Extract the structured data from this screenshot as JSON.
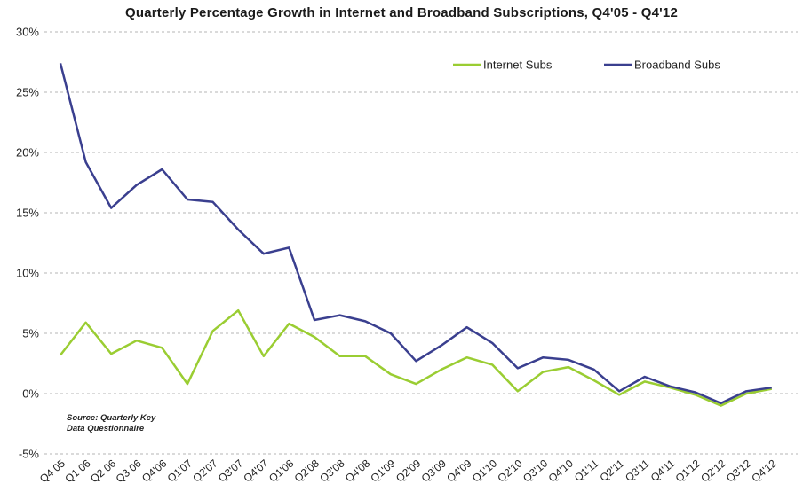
{
  "chart_data": {
    "type": "line",
    "title": "Quarterly Percentage Growth in Internet and Broadband Subscriptions, Q4'05 - Q4'12",
    "xlabel": "",
    "ylabel": "",
    "categories": [
      "Q4 05",
      "Q1 06",
      "Q2 06",
      "Q3 06",
      "Q4'06",
      "Q1'07",
      "Q2'07",
      "Q3'07",
      "Q4'07",
      "Q1'08",
      "Q2'08",
      "Q3'08",
      "Q4'08",
      "Q1'09",
      "Q2'09",
      "Q3'09",
      "Q4'09",
      "Q1'10",
      "Q2'10",
      "Q3'10",
      "Q4'10",
      "Q1'11",
      "Q2'11",
      "Q3'11",
      "Q4'11",
      "Q1'12",
      "Q2'12",
      "Q3'12",
      "Q4'12"
    ],
    "y_ticks": [
      "-5%",
      "0%",
      "5%",
      "10%",
      "15%",
      "20%",
      "25%",
      "30%"
    ],
    "ylim": [
      -5,
      30
    ],
    "grid": true,
    "legend_position": "top-right",
    "series": [
      {
        "name": "Internet Subs",
        "color": "#9acd32",
        "values": [
          3.2,
          5.9,
          3.3,
          4.4,
          3.8,
          0.8,
          5.2,
          6.9,
          3.1,
          5.8,
          4.7,
          3.1,
          3.1,
          1.6,
          0.8,
          2.0,
          3.0,
          2.4,
          0.2,
          1.8,
          2.2,
          1.1,
          -0.1,
          1.0,
          0.5,
          -0.1,
          -1.0,
          0.0,
          0.4
        ]
      },
      {
        "name": "Broadband Subs",
        "color": "#3a3f8f",
        "values": [
          27.4,
          19.2,
          15.4,
          17.3,
          18.6,
          16.1,
          15.9,
          13.6,
          11.6,
          12.1,
          6.1,
          6.5,
          6.0,
          5.0,
          2.7,
          4.0,
          5.5,
          4.2,
          2.1,
          3.0,
          2.8,
          2.0,
          0.2,
          1.4,
          0.6,
          0.1,
          -0.8,
          0.2,
          0.5
        ]
      }
    ],
    "source_note": [
      "Source: Quarterly Key",
      "Data Questionnaire"
    ]
  }
}
